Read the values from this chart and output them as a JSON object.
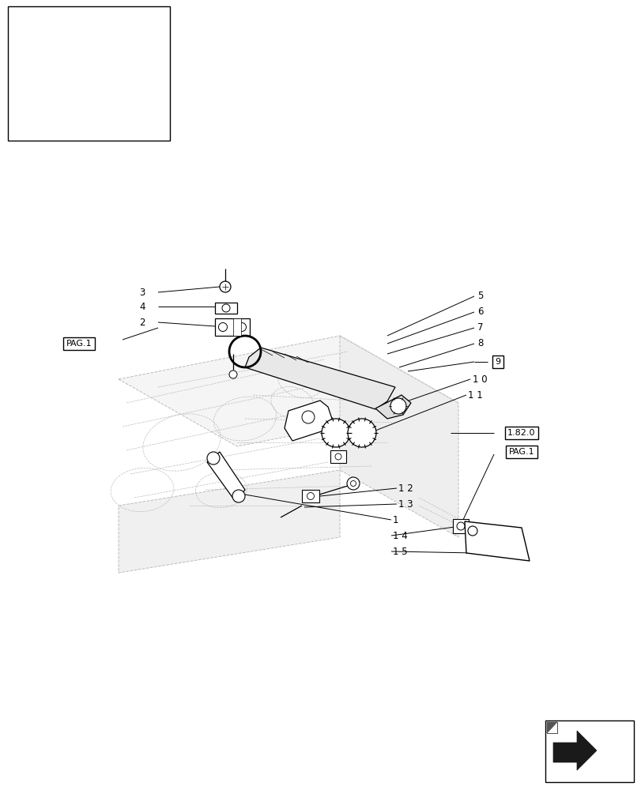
{
  "bg_color": "#ffffff",
  "line_color": "#000000",
  "dash_color": "#bbbbbb",
  "fig_width": 8.12,
  "fig_height": 10.0,
  "dpi": 100
}
